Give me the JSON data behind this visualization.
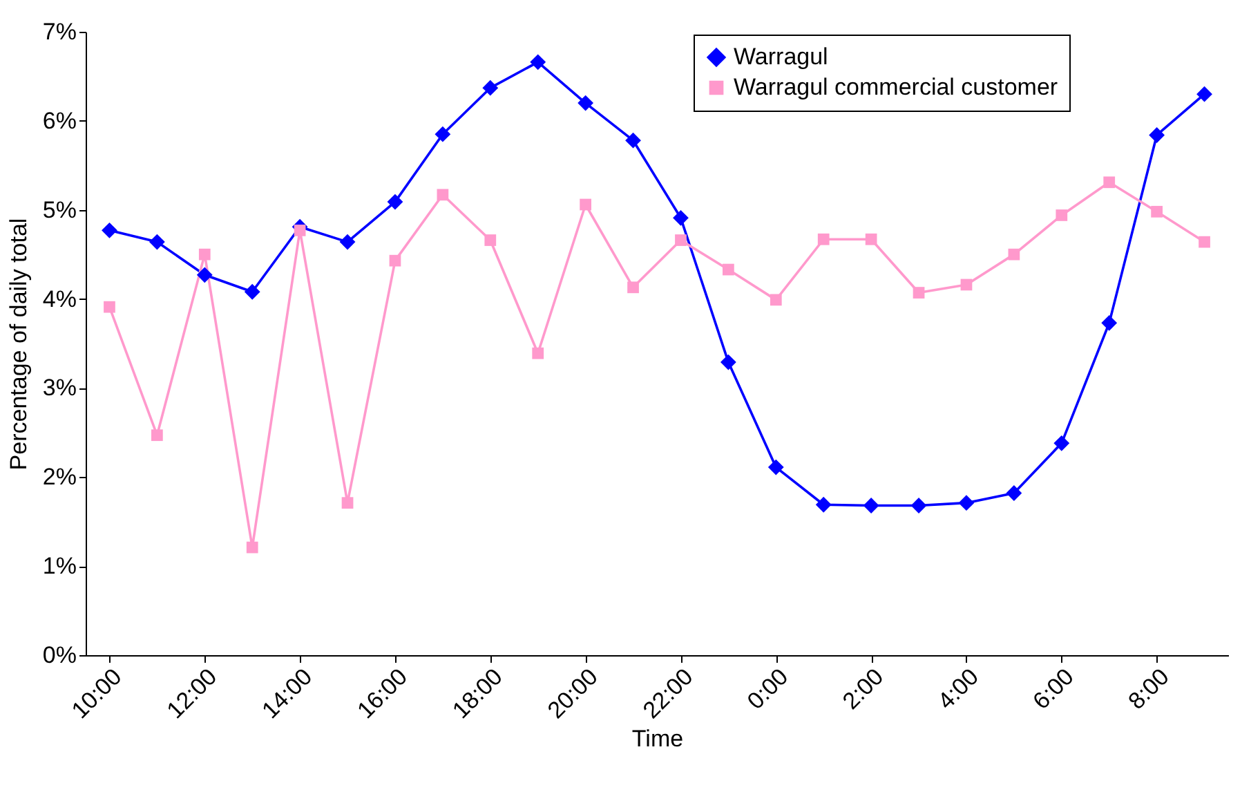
{
  "chart_data": {
    "type": "line",
    "xlabel": "Time",
    "ylabel": "Percentage of daily total",
    "categories": [
      "10:00",
      null,
      "12:00",
      null,
      "14:00",
      null,
      "16:00",
      null,
      "18:00",
      null,
      "20:00",
      null,
      "22:00",
      null,
      "0:00",
      null,
      "2:00",
      null,
      "4:00",
      null,
      "6:00",
      null,
      "8:00",
      null
    ],
    "series": [
      {
        "name": "Warragul",
        "color": "#0000ff",
        "marker": "diamond",
        "values": [
          4.77,
          4.64,
          4.27,
          4.08,
          4.81,
          4.64,
          5.09,
          5.85,
          6.37,
          6.66,
          6.2,
          5.78,
          4.91,
          3.29,
          2.11,
          1.69,
          1.68,
          1.68,
          1.71,
          1.82,
          2.38,
          3.73,
          5.84,
          6.3
        ]
      },
      {
        "name": "Warragul commercial customer",
        "color": "#ff99cc",
        "marker": "square",
        "values": [
          3.91,
          2.47,
          4.5,
          1.21,
          4.77,
          1.71,
          4.43,
          5.17,
          4.66,
          3.39,
          5.06,
          4.13,
          4.66,
          4.33,
          3.99,
          4.67,
          4.67,
          4.07,
          4.16,
          4.5,
          4.94,
          5.31,
          4.98,
          4.64
        ]
      }
    ],
    "ylim": [
      0,
      7
    ],
    "yticks": [
      {
        "value": 0,
        "label": "0%"
      },
      {
        "value": 1,
        "label": "1%"
      },
      {
        "value": 2,
        "label": "2%"
      },
      {
        "value": 3,
        "label": "3%"
      },
      {
        "value": 4,
        "label": "4%"
      },
      {
        "value": 5,
        "label": "5%"
      },
      {
        "value": 6,
        "label": "6%"
      },
      {
        "value": 7,
        "label": "7%"
      }
    ],
    "legend": "top right",
    "grid": false,
    "line_style": "solid"
  }
}
